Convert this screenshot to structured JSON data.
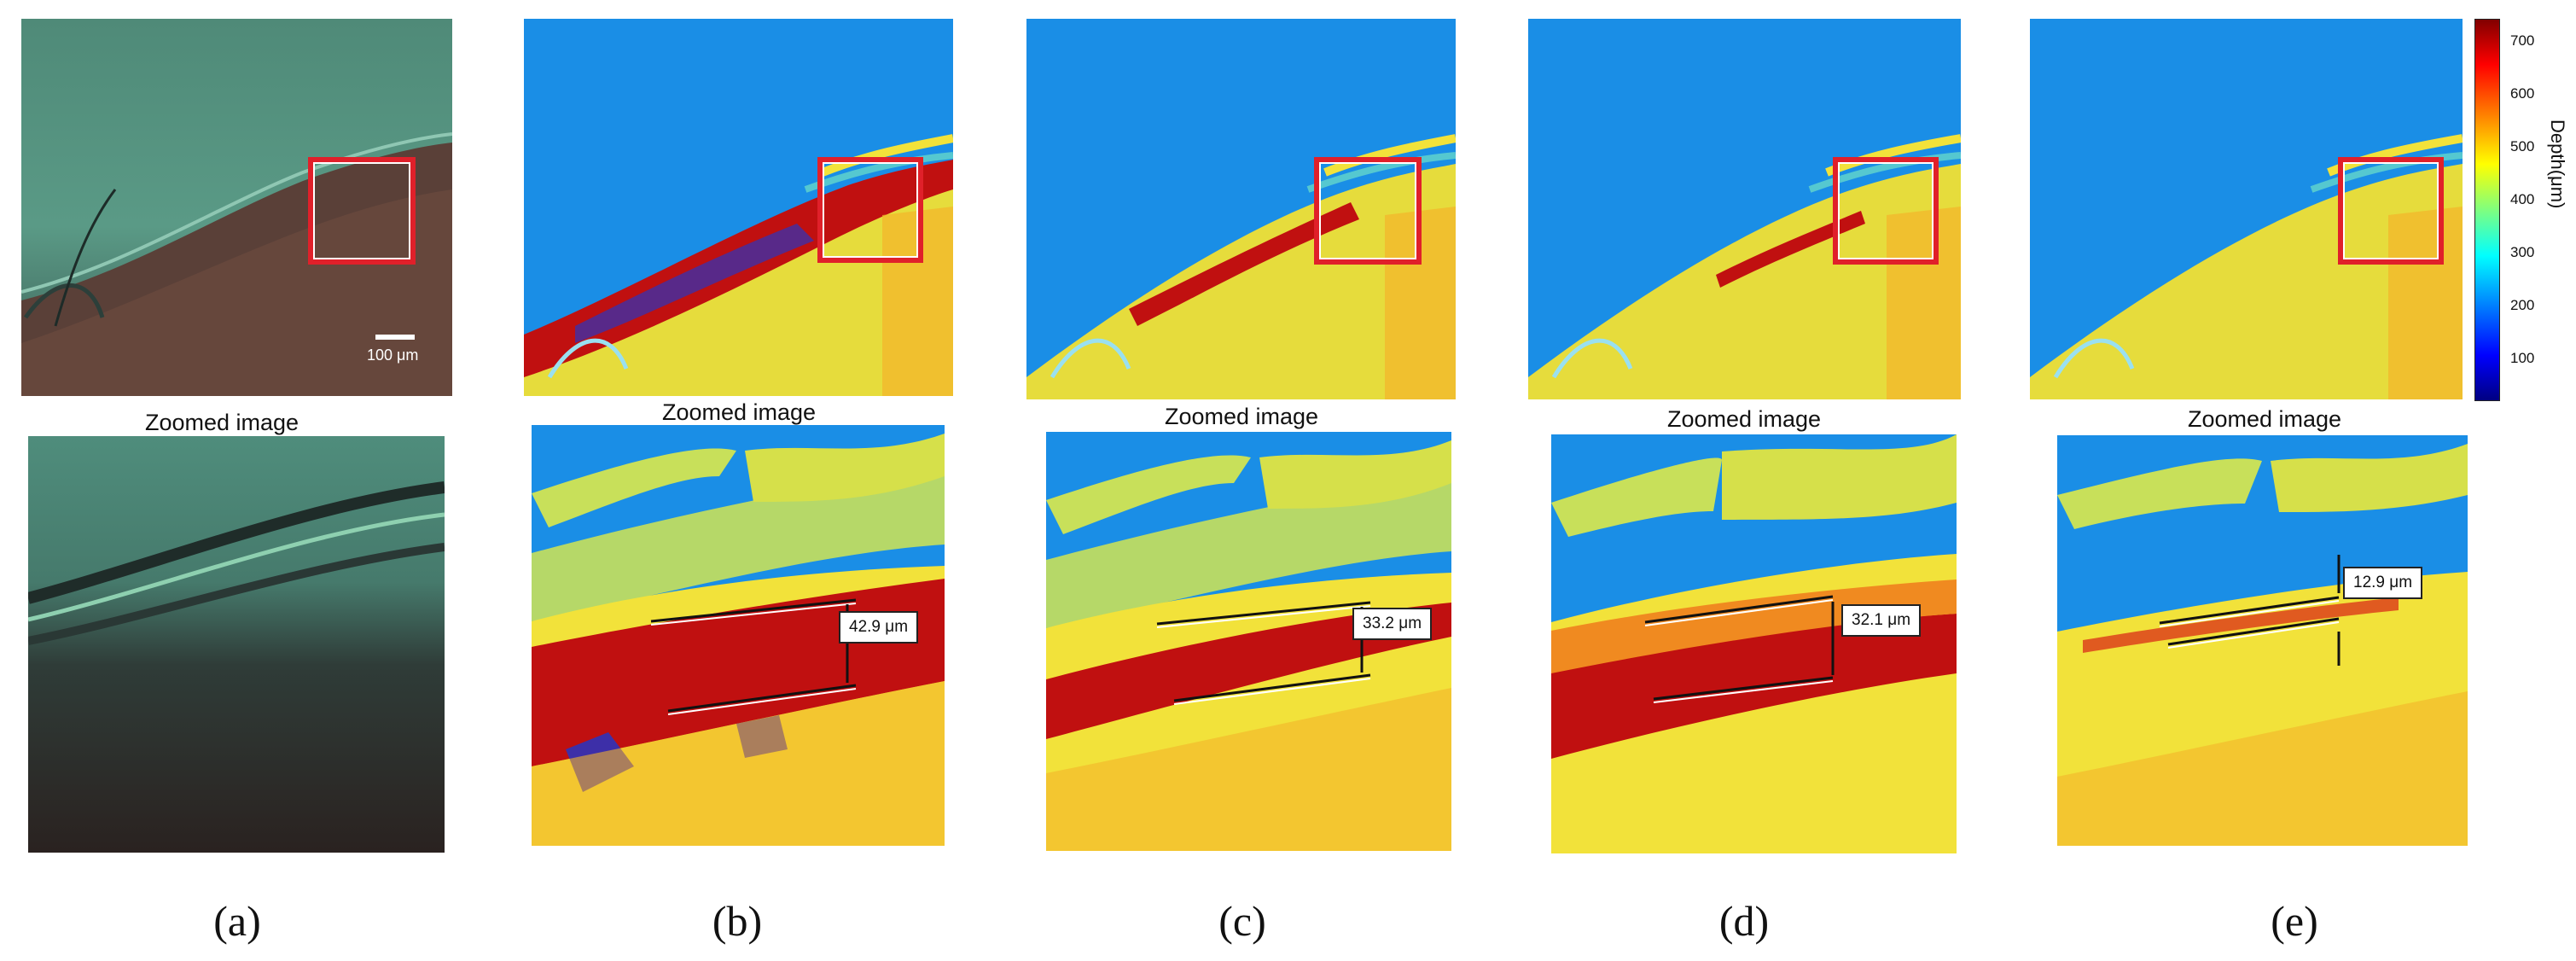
{
  "panels": [
    {
      "label": "(a)",
      "caption": "Zoomed image",
      "scale_bar": "100 μm"
    },
    {
      "label": "(b)",
      "caption": "Zoomed image",
      "measurement": "42.9 μm"
    },
    {
      "label": "(c)",
      "caption": "Zoomed image",
      "measurement": "33.2 μm"
    },
    {
      "label": "(d)",
      "caption": "Zoomed image",
      "measurement": "32.1 μm"
    },
    {
      "label": "(e)",
      "caption": "Zoomed image",
      "measurement": "12.9 μm"
    }
  ],
  "colorbar": {
    "title": "Depth(μm)",
    "ticks": [
      "700",
      "600",
      "500",
      "400",
      "300",
      "200",
      "100"
    ],
    "colormap": "jet"
  },
  "colors": {
    "roi_box": "#e0202a",
    "depth_blue": "#1a8ee6",
    "depth_yellow": "#f2e23a",
    "depth_red": "#c01010"
  }
}
